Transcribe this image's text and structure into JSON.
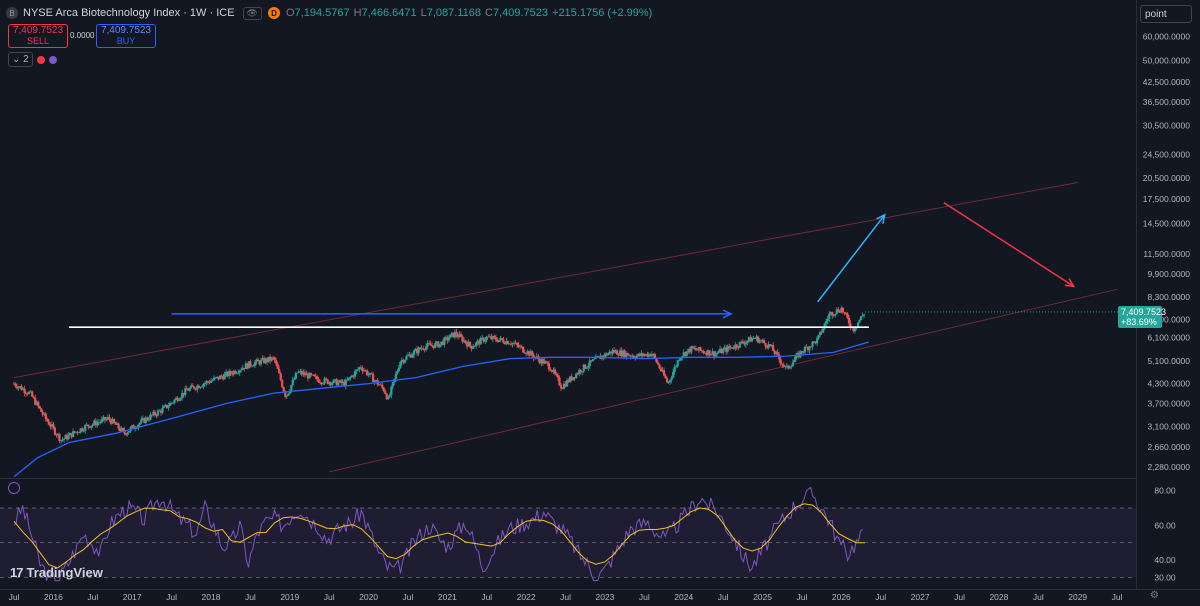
{
  "header": {
    "symbol_title": "NYSE Arca Biotechnology Index · 1W · ICE",
    "logo_letter": "B",
    "eye_label": "👁",
    "d_badge": "D",
    "o_label": "O",
    "o_value": "7,194.5767",
    "h_label": "H",
    "h_value": "7,466.6471",
    "l_label": "L",
    "l_value": "7,087.1168",
    "c_label": "C",
    "c_value": "7,409.7523",
    "change": "+215.1756 (+2.99%)"
  },
  "trade": {
    "sell_price": "7,409.7523",
    "sell_label": "SELL",
    "spread": "0.0000",
    "buy_price": "7,409.7523",
    "buy_label": "BUY"
  },
  "indicators": {
    "count": "2"
  },
  "scale_unit": "point",
  "last_price": {
    "price": "7,409.7523",
    "pct": "+83.69%"
  },
  "brand": {
    "mark": "17",
    "name": "TradingView"
  },
  "colors": {
    "up": "#26a69a",
    "down": "#ef5350",
    "ma": "#2962ff",
    "rsi": "#7e57c2",
    "rsi_ma": "#f0c419",
    "channel": "#6b2a35",
    "arrow_blue": "#2962ff",
    "arrow_cyan": "#29b6f6",
    "arrow_red": "#f23645"
  },
  "chart_data": {
    "type": "candlestick",
    "title": "NYSE Arca Biotechnology Index · 1W · ICE",
    "yscale": "log",
    "ylim": [
      2100,
      67000
    ],
    "y_ticks": [
      "60,000.0000",
      "50,000.0000",
      "42,500.0000",
      "36,500.0000",
      "30,500.0000",
      "24,500.0000",
      "20,500.0000",
      "17,500.0000",
      "14,500.0000",
      "11,500.0000",
      "9,900.0000",
      "8,300.0000",
      "7,000.0000",
      "6,100.0000",
      "5,100.0000",
      "4,300.0000",
      "3,700.0000",
      "3,100.0000",
      "2,660.0000",
      "2,280.0000"
    ],
    "x_ticks": [
      "Jul",
      "2016",
      "Jul",
      "2017",
      "Jul",
      "2018",
      "Jul",
      "2019",
      "Jul",
      "2020",
      "Jul",
      "2021",
      "Jul",
      "2022",
      "Jul",
      "2023",
      "Jul",
      "2024",
      "Jul",
      "2025",
      "Jul",
      "2026",
      "Jul",
      "2027",
      "Jul",
      "2028",
      "Jul",
      "2029",
      "Jul"
    ],
    "price_path": [
      [
        2015.5,
        4300
      ],
      [
        2015.7,
        4000
      ],
      [
        2015.9,
        3300
      ],
      [
        2016.1,
        2800
      ],
      [
        2016.4,
        3100
      ],
      [
        2016.7,
        3300
      ],
      [
        2016.9,
        2950
      ],
      [
        2017.1,
        3200
      ],
      [
        2017.4,
        3550
      ],
      [
        2017.7,
        4100
      ],
      [
        2017.9,
        4300
      ],
      [
        2018.2,
        4600
      ],
      [
        2018.5,
        5000
      ],
      [
        2018.8,
        5200
      ],
      [
        2018.95,
        3900
      ],
      [
        2019.1,
        4700
      ],
      [
        2019.4,
        4400
      ],
      [
        2019.7,
        4300
      ],
      [
        2019.9,
        4900
      ],
      [
        2020.2,
        4100
      ],
      [
        2020.25,
        3800
      ],
      [
        2020.4,
        5100
      ],
      [
        2020.7,
        5700
      ],
      [
        2020.9,
        5800
      ],
      [
        2021.1,
        6300
      ],
      [
        2021.3,
        5700
      ],
      [
        2021.5,
        6100
      ],
      [
        2021.8,
        5900
      ],
      [
        2022.0,
        5500
      ],
      [
        2022.3,
        4900
      ],
      [
        2022.45,
        4200
      ],
      [
        2022.7,
        4800
      ],
      [
        2022.9,
        5200
      ],
      [
        2023.1,
        5500
      ],
      [
        2023.4,
        5300
      ],
      [
        2023.6,
        5400
      ],
      [
        2023.8,
        4300
      ],
      [
        2023.95,
        5300
      ],
      [
        2024.1,
        5600
      ],
      [
        2024.4,
        5400
      ],
      [
        2024.7,
        5800
      ],
      [
        2024.9,
        6100
      ],
      [
        2025.1,
        5700
      ],
      [
        2025.3,
        4800
      ],
      [
        2025.5,
        5500
      ],
      [
        2025.7,
        6000
      ],
      [
        2025.85,
        7300
      ],
      [
        2026.0,
        7600
      ],
      [
        2026.15,
        6500
      ],
      [
        2026.3,
        7410
      ]
    ],
    "ma_path": [
      [
        2015.5,
        2120
      ],
      [
        2015.8,
        2450
      ],
      [
        2016.2,
        2750
      ],
      [
        2016.8,
        2950
      ],
      [
        2017.5,
        3300
      ],
      [
        2018.2,
        3700
      ],
      [
        2018.8,
        4000
      ],
      [
        2019.4,
        4150
      ],
      [
        2020.0,
        4300
      ],
      [
        2020.6,
        4500
      ],
      [
        2021.2,
        4900
      ],
      [
        2021.8,
        5200
      ],
      [
        2022.3,
        5250
      ],
      [
        2022.9,
        5250
      ],
      [
        2023.5,
        5200
      ],
      [
        2024.1,
        5250
      ],
      [
        2024.7,
        5250
      ],
      [
        2025.3,
        5300
      ],
      [
        2025.9,
        5450
      ],
      [
        2026.35,
        5900
      ]
    ],
    "channel_upper": [
      [
        2015.5,
        4500
      ],
      [
        2029.0,
        19800
      ]
    ],
    "channel_lower": [
      [
        2019.5,
        2200
      ],
      [
        2029.5,
        8800
      ]
    ],
    "resistance_line": [
      [
        2016.2,
        6600
      ],
      [
        2026.35,
        6600
      ]
    ],
    "arrow_horizontal": [
      [
        2017.5,
        7300
      ],
      [
        2024.6,
        7300
      ]
    ],
    "arrow_up": [
      [
        2025.7,
        8000
      ],
      [
        2026.55,
        15500
      ]
    ],
    "arrow_down": [
      [
        2027.3,
        17000
      ],
      [
        2028.95,
        9000
      ]
    ],
    "rsi": {
      "ylim": [
        25,
        85
      ],
      "y_ticks": [
        "80.00",
        "60.00",
        "40.00",
        "30.00"
      ],
      "levels": [
        70,
        50,
        30
      ],
      "values": [
        62,
        70,
        55,
        38,
        30,
        28,
        36,
        45,
        55,
        50,
        44,
        60,
        66,
        70,
        68,
        63,
        72,
        76,
        70,
        64,
        60,
        55,
        70,
        60,
        48,
        50,
        60,
        38,
        55,
        62,
        64,
        60,
        66,
        70,
        64,
        60,
        52,
        56,
        60,
        62,
        68,
        56,
        44,
        36,
        34,
        40,
        50,
        56,
        60,
        52,
        48,
        56,
        62,
        50,
        36,
        44,
        52,
        58,
        60,
        62,
        64,
        68,
        62,
        58,
        52,
        44,
        38,
        30,
        34,
        42,
        50,
        58,
        60,
        62,
        56,
        52,
        58,
        64,
        70,
        76,
        72,
        68,
        60,
        52,
        42,
        36,
        44,
        52,
        60,
        66,
        72,
        76,
        78,
        70,
        62,
        50,
        44,
        50,
        56
      ]
    }
  }
}
